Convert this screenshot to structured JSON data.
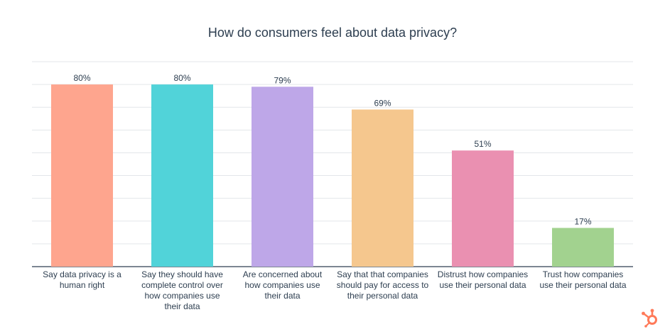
{
  "title": "How do consumers feel about data privacy?",
  "chart_data": {
    "type": "bar",
    "title": "How do consumers feel about data privacy?",
    "xlabel": "",
    "ylabel": "",
    "ylim": [
      0,
      90
    ],
    "grid": true,
    "categories": [
      "Say data privacy is a human right",
      "Say they should have complete control over how companies use their data",
      "Are concerned about how companies use their data",
      "Say that that companies should pay for access to their personal data",
      "Distrust how companies use their personal data",
      "Trust how companies use their personal data"
    ],
    "category_lines": [
      [
        "Say data privacy is a",
        "human right"
      ],
      [
        "Say they should have",
        "complete control over",
        "how companies use",
        "their data"
      ],
      [
        "Are concerned about",
        "how companies use",
        "their data"
      ],
      [
        "Say that that companies",
        "should pay for access to",
        "their personal data"
      ],
      [
        "Distrust how companies",
        "use their personal data"
      ],
      [
        "Trust how companies",
        "use their personal data"
      ]
    ],
    "values": [
      80,
      80,
      79,
      69,
      51,
      17
    ],
    "data_labels": [
      "80%",
      "80%",
      "79%",
      "69%",
      "51%",
      "17%"
    ],
    "colors": [
      "#fea58e",
      "#51d3d9",
      "#bea7e8",
      "#f5c78e",
      "#ea90b1",
      "#a2d28f"
    ]
  },
  "logo": {
    "icon": "hubspot-sprocket-icon",
    "color": "#ff7a59"
  }
}
